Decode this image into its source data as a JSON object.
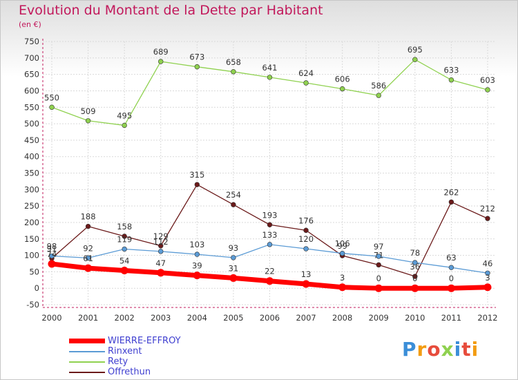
{
  "title": "Evolution du Montant de la Dette par Habitant",
  "unit": "(en €)",
  "brand": "Proxiti",
  "chart_data": {
    "type": "line",
    "x": [
      "2000",
      "2001",
      "2002",
      "2003",
      "2004",
      "2005",
      "2006",
      "2007",
      "2008",
      "2009",
      "2010",
      "2011",
      "2012"
    ],
    "ylim": [
      -50,
      750
    ],
    "yticks": [
      -50,
      0,
      50,
      100,
      150,
      200,
      250,
      300,
      350,
      400,
      450,
      500,
      550,
      600,
      650,
      700,
      750
    ],
    "grid": true,
    "legend_position": "bottom-left",
    "series": [
      {
        "name": "WIERRE-EFFROY",
        "color": "#ff0000",
        "values": [
          74,
          61,
          54,
          47,
          39,
          31,
          22,
          13,
          3,
          0,
          0,
          0,
          3
        ],
        "labels": [
          "74",
          "61",
          "54",
          "47",
          "39",
          "31",
          "22",
          "13",
          "3",
          "0",
          "0",
          "0",
          "3"
        ]
      },
      {
        "name": "Rinxent",
        "color": "#5b9bd5",
        "values": [
          98,
          92,
          119,
          112,
          103,
          93,
          133,
          120,
          106,
          97,
          78,
          63,
          46
        ],
        "labels": [
          "98",
          "92",
          "119",
          "112",
          "103",
          "93",
          "133",
          "120",
          "106",
          "97",
          "78",
          "63",
          "46"
        ]
      },
      {
        "name": "Rety",
        "color": "#8fd14f",
        "values": [
          550,
          509,
          495,
          689,
          673,
          658,
          641,
          624,
          606,
          586,
          695,
          633,
          603
        ],
        "labels": [
          "550",
          "509",
          "495",
          "689",
          "673",
          "658",
          "641",
          "624",
          "606",
          "586",
          "695",
          "633",
          "603"
        ]
      },
      {
        "name": "Offrethun",
        "color": "#6b1a1a",
        "values": [
          91,
          188,
          158,
          129,
          315,
          254,
          193,
          176,
          99,
          71,
          36,
          262,
          212
        ],
        "labels": [
          "91",
          "188",
          "158",
          "129",
          "315",
          "254",
          "193",
          "176",
          "99",
          "71",
          "36",
          "262",
          "212"
        ]
      }
    ]
  }
}
